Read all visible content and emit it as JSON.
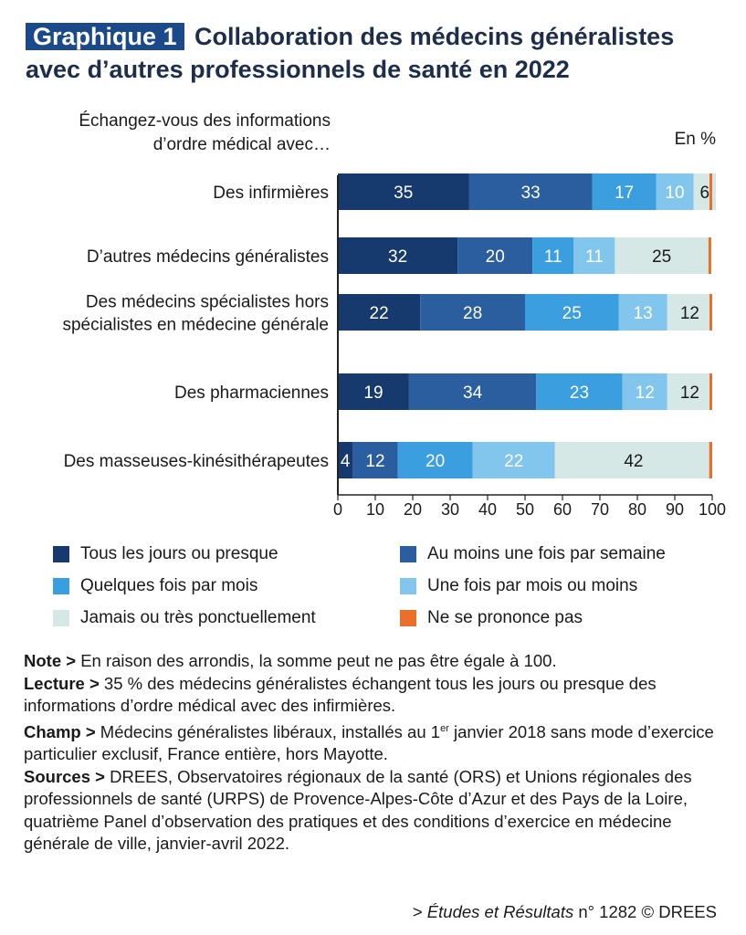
{
  "title": {
    "badge": "Graphique 1",
    "text": "Collaboration des médecins généralistes avec d’autres professionnels de santé en 2022"
  },
  "question_line1": "Échangez-vous des informations",
  "question_line2": "d’ordre médical avec…",
  "unit_label": "En %",
  "colors": {
    "title_text": "#1d2e4a",
    "badge_bg": "#1a4a8a",
    "axis": "#222222"
  },
  "chart_data": {
    "type": "bar",
    "orientation": "horizontal",
    "stacked": true,
    "categories": [
      "Des infirmières",
      "D’autres médecins généralistes",
      "Des médecins spécialistes hors spécialistes en médecine générale",
      "Des pharmaciennes",
      "Des masseuses-kinésithérapeutes"
    ],
    "series": [
      {
        "name": "Tous les jours ou presque",
        "color": "#163a6e",
        "label_color": "#ffffff",
        "values": [
          35,
          32,
          22,
          19,
          4
        ]
      },
      {
        "name": "Au moins une fois par semaine",
        "color": "#2b5e9e",
        "label_color": "#ffffff",
        "values": [
          33,
          20,
          28,
          34,
          12
        ]
      },
      {
        "name": "Quelques fois par mois",
        "color": "#3b9ede",
        "label_color": "#ffffff",
        "values": [
          17,
          11,
          25,
          23,
          20
        ]
      },
      {
        "name": "Une fois par mois ou moins",
        "color": "#82c6ee",
        "label_color": "#ffffff",
        "values": [
          10,
          11,
          13,
          12,
          22
        ]
      },
      {
        "name": "Jamais ou très ponctuellement",
        "color": "#d6e8e6",
        "label_color": "#1a1a1a",
        "values": [
          6,
          25,
          12,
          12,
          42
        ]
      },
      {
        "name": "Ne se prononce pas",
        "color": "#e8702a",
        "label_color": "#1a1a1a",
        "values": [
          0.6,
          0.3,
          0.6,
          0.3,
          0.8
        ]
      }
    ],
    "xlim": [
      0,
      100
    ],
    "xticks": [
      0,
      10,
      20,
      30,
      40,
      50,
      60,
      70,
      80,
      90,
      100
    ],
    "grid": false,
    "legend_placement": "bottom"
  },
  "notes": {
    "note_label": "Note >",
    "note_text": "En raison des arrondis, la somme peut ne pas être égale à 100.",
    "lecture_label": "Lecture >",
    "lecture_text": "35 % des médecins généralistes échangent tous les jours ou presque des informations d’ordre médical avec des infirmières.",
    "champ_label": "Champ >",
    "champ_text_before": "Médecins généralistes libéraux, installés au 1",
    "champ_sup": "er",
    "champ_text_after": "janvier 2018 sans mode d’exercice particulier exclusif, France entière, hors Mayotte.",
    "sources_label": "Sources >",
    "sources_text": "DREES, Observatoires régionaux de la santé (ORS) et Unions régionales des professionnels de santé (URPS) de Provence-Alpes-Côte d’Azur et des Pays de la Loire, quatrième Panel d’observation des pratiques et des conditions d’exercice en médecine générale de ville, janvier-avril 2022."
  },
  "source_line": {
    "prefix": ">",
    "publication": "Études et Résultats",
    "rest": "n° 1282 © DREES"
  }
}
